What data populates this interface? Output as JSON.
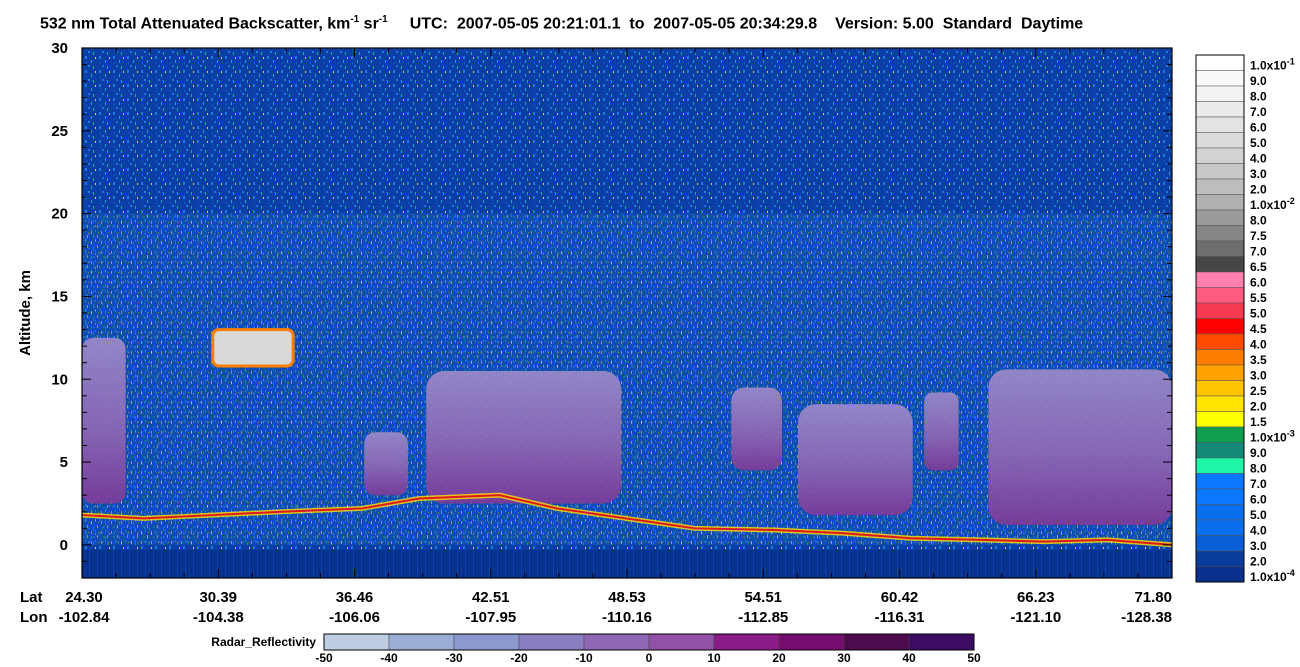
{
  "title": {
    "main": "532 nm Total Attenuated Backscatter, km",
    "sup1": "-1",
    "unit2": " sr",
    "sup2": "-1",
    "utc_label": "UTC:",
    "utc_start": "2007-05-05 20:21:01.1",
    "to": "to",
    "utc_end": "2007-05-05 20:34:29.8",
    "version": "Version: 5.00",
    "mode": "Standard",
    "time_of_day": "Daytime"
  },
  "chart_data": {
    "type": "heatmap",
    "ylabel": "Altitude, km",
    "ylim": [
      -2,
      30
    ],
    "yticks": [
      0,
      5,
      10,
      15,
      20,
      25,
      30
    ],
    "x_row_labels": [
      "Lat",
      "Lon"
    ],
    "x_ticks": [
      {
        "lat": "24.30",
        "lon": "-102.84"
      },
      {
        "lat": "30.39",
        "lon": "-104.38"
      },
      {
        "lat": "36.46",
        "lon": "-106.06"
      },
      {
        "lat": "42.51",
        "lon": "-107.95"
      },
      {
        "lat": "48.53",
        "lon": "-110.16"
      },
      {
        "lat": "54.51",
        "lon": "-112.85"
      },
      {
        "lat": "60.42",
        "lon": "-116.31"
      },
      {
        "lat": "66.23",
        "lon": "-121.10"
      },
      {
        "lat": "71.80",
        "lon": "-128.38"
      }
    ],
    "backscatter_colorbar": [
      {
        "label": "1.0x10",
        "exp": "-1",
        "color": "#ffffff"
      },
      {
        "label": "9.0",
        "color": "#fafafa"
      },
      {
        "label": "8.0",
        "color": "#f3f3f3"
      },
      {
        "label": "7.0",
        "color": "#ebebeb"
      },
      {
        "label": "6.0",
        "color": "#e3e3e3"
      },
      {
        "label": "5.0",
        "color": "#dbdbdb"
      },
      {
        "label": "4.0",
        "color": "#d2d2d2"
      },
      {
        "label": "3.0",
        "color": "#c8c8c8"
      },
      {
        "label": "2.0",
        "color": "#bdbdbd"
      },
      {
        "label": "1.0x10",
        "exp": "-2",
        "color": "#b0b0b0"
      },
      {
        "label": "8.0",
        "color": "#9a9a9a"
      },
      {
        "label": "7.5",
        "color": "#868686"
      },
      {
        "label": "7.0",
        "color": "#6e6e6e"
      },
      {
        "label": "6.5",
        "color": "#474747"
      },
      {
        "label": "6.0",
        "color": "#ff7fae"
      },
      {
        "label": "5.5",
        "color": "#ff5a82"
      },
      {
        "label": "5.0",
        "color": "#f83a50"
      },
      {
        "label": "4.5",
        "color": "#ff0000"
      },
      {
        "label": "4.0",
        "color": "#ff4b00"
      },
      {
        "label": "3.5",
        "color": "#ff7e00"
      },
      {
        "label": "3.0",
        "color": "#ffa200"
      },
      {
        "label": "2.5",
        "color": "#ffc400"
      },
      {
        "label": "2.0",
        "color": "#ffe400"
      },
      {
        "label": "1.5",
        "color": "#ffff00"
      },
      {
        "label": "1.0x10",
        "exp": "-3",
        "color": "#0e9f4e"
      },
      {
        "label": "9.0",
        "color": "#13897a"
      },
      {
        "label": "8.0",
        "color": "#1ff5a8"
      },
      {
        "label": "7.0",
        "color": "#0a78ff"
      },
      {
        "label": "6.0",
        "color": "#0a78ff"
      },
      {
        "label": "5.0",
        "color": "#0a6fee"
      },
      {
        "label": "4.0",
        "color": "#0a6fee"
      },
      {
        "label": "3.0",
        "color": "#0a5ed8"
      },
      {
        "label": "2.0",
        "color": "#0a3c9e"
      },
      {
        "label": "1.0x10",
        "exp": "-4",
        "color": "#08308c"
      }
    ],
    "radar_reflectivity": {
      "label": "Radar_Reflectivity",
      "ticks": [
        "-50",
        "-40",
        "-30",
        "-20",
        "-10",
        "0",
        "10",
        "20",
        "30",
        "40",
        "50"
      ],
      "colors": [
        "#bfcde3",
        "#9aaed6",
        "#8c99cf",
        "#8a7ec1",
        "#8f67b5",
        "#9051a6",
        "#8a1a85",
        "#740d6e",
        "#4d0b4e",
        "#3c0c63"
      ]
    },
    "cloud_regions": [
      {
        "name": "cloud-a",
        "lat_range": [
          24.3,
          26.2
        ],
        "alt_range": [
          2.5,
          12.5
        ],
        "type": "radar"
      },
      {
        "name": "cloud-b",
        "lat_range": [
          30.0,
          33.5
        ],
        "alt_range": [
          10.8,
          13.0
        ],
        "type": "lidar"
      },
      {
        "name": "cloud-c",
        "lat_range": [
          36.6,
          38.5
        ],
        "alt_range": [
          3.0,
          6.8
        ],
        "type": "radar"
      },
      {
        "name": "cloud-d",
        "lat_range": [
          39.3,
          47.8
        ],
        "alt_range": [
          2.5,
          10.5
        ],
        "type": "radar"
      },
      {
        "name": "cloud-e",
        "lat_range": [
          52.6,
          54.8
        ],
        "alt_range": [
          4.5,
          9.5
        ],
        "type": "radar"
      },
      {
        "name": "cloud-f",
        "lat_range": [
          55.5,
          60.5
        ],
        "alt_range": [
          1.8,
          8.5
        ],
        "type": "radar"
      },
      {
        "name": "cloud-g",
        "lat_range": [
          61.0,
          62.5
        ],
        "alt_range": [
          4.5,
          9.2
        ],
        "type": "radar"
      },
      {
        "name": "cloud-h",
        "lat_range": [
          63.8,
          71.8
        ],
        "alt_range": [
          1.2,
          10.6
        ],
        "type": "radar"
      }
    ],
    "surface_line": {
      "lat": [
        24.3,
        27.0,
        30.0,
        33.0,
        36.5,
        39.0,
        42.5,
        45.0,
        48.5,
        51.0,
        54.5,
        57.5,
        60.4,
        63.5,
        66.2,
        69.0,
        71.8
      ],
      "alt": [
        1.8,
        1.6,
        1.8,
        2.0,
        2.2,
        2.8,
        3.0,
        2.2,
        1.5,
        1.0,
        0.9,
        0.7,
        0.4,
        0.3,
        0.2,
        0.3,
        0.0
      ]
    }
  }
}
